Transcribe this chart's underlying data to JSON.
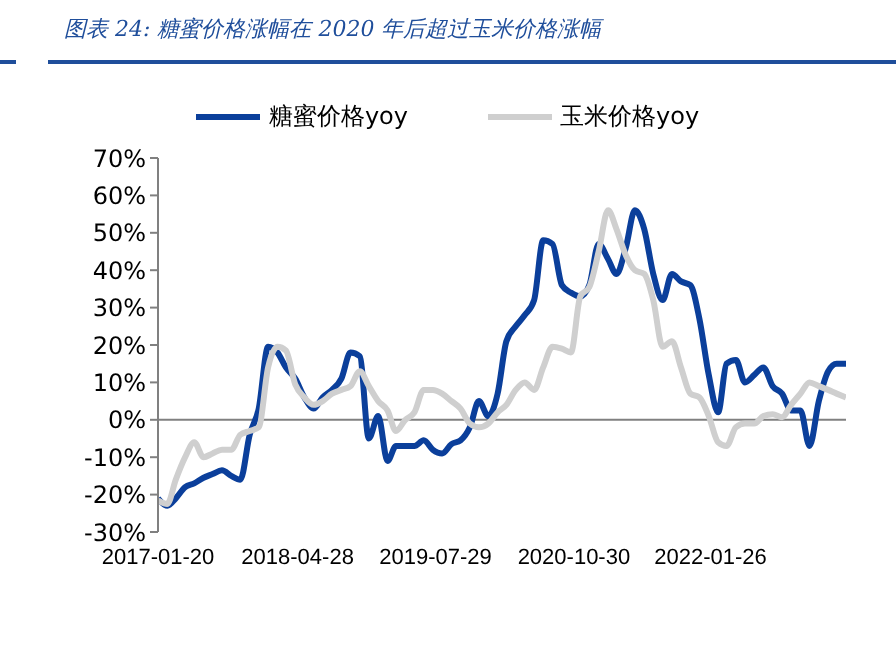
{
  "chart_data": {
    "type": "line",
    "title": "图表 24:  糖蜜价格涨幅在 2020 年后超过玉米价格涨幅",
    "x": [
      "2017-01-20",
      "2017-02-20",
      "2017-03-20",
      "2017-04-20",
      "2017-05-20",
      "2017-06-20",
      "2017-07-20",
      "2017-08-20",
      "2017-09-20",
      "2017-10-20",
      "2017-11-20",
      "2017-12-20",
      "2018-01-20",
      "2018-02-20",
      "2018-03-20",
      "2018-04-20",
      "2018-05-20",
      "2018-06-20",
      "2018-07-20",
      "2018-08-20",
      "2018-09-20",
      "2018-10-20",
      "2018-11-20",
      "2018-12-20",
      "2019-01-20",
      "2019-02-20",
      "2019-03-20",
      "2019-04-20",
      "2019-05-20",
      "2019-06-20",
      "2019-07-20",
      "2019-08-20",
      "2019-09-20",
      "2019-10-20",
      "2019-11-20",
      "2019-12-20",
      "2020-01-20",
      "2020-02-20",
      "2020-03-20",
      "2020-04-20",
      "2020-05-20",
      "2020-06-20",
      "2020-07-20",
      "2020-08-20",
      "2020-09-20",
      "2020-10-20",
      "2020-11-20",
      "2020-12-20",
      "2021-01-20",
      "2021-02-20",
      "2021-03-20",
      "2021-04-20",
      "2021-05-20",
      "2021-06-20",
      "2021-07-20",
      "2021-08-20",
      "2021-09-20",
      "2021-10-20",
      "2021-11-20",
      "2021-12-20",
      "2022-01-20",
      "2022-02-20",
      "2022-03-20",
      "2022-04-20",
      "2022-05-20",
      "2022-06-20",
      "2022-07-20",
      "2022-08-20",
      "2022-09-20",
      "2022-10-20",
      "2022-11-20",
      "2022-12-20",
      "2023-01-20",
      "2023-02-20",
      "2023-03-20",
      "2023-04-20"
    ],
    "series": [
      {
        "name": "糖蜜价格yoy",
        "color": "#0b3f9b",
        "values": [
          -21,
          -23,
          -21,
          -18,
          -17,
          -15.5,
          -14.5,
          -13.5,
          -15,
          -16,
          -4,
          3,
          19.5,
          18,
          14,
          11,
          6,
          3,
          6,
          8,
          11,
          18,
          17,
          -5,
          1,
          -11,
          -7,
          -7,
          -7,
          -5.5,
          -8,
          -9,
          -6.5,
          -5.5,
          -2,
          5,
          1,
          7,
          21,
          25,
          28,
          32,
          48,
          47,
          36,
          34,
          33,
          36,
          47,
          43,
          39,
          46,
          56,
          51,
          39,
          32,
          39,
          37,
          36,
          27,
          12,
          2,
          15,
          16,
          10,
          12,
          14,
          9,
          7,
          2.5,
          2.5,
          -7,
          5,
          13,
          15,
          15
        ]
      },
      {
        "name": "玉米价格yoy",
        "color": "#cfcfcf",
        "values": [
          -21.5,
          -22.5,
          -16,
          -10,
          -6,
          -10,
          -9,
          -8,
          -8,
          -4,
          -3,
          -2,
          14,
          19.5,
          18.5,
          9.5,
          6,
          4,
          5,
          7,
          8,
          9,
          13,
          9,
          5,
          2.5,
          -3,
          0,
          2,
          8,
          8,
          7,
          5,
          3,
          -1,
          -2,
          -1,
          2,
          4,
          8,
          10,
          8,
          14,
          19.5,
          19,
          18,
          33,
          35.5,
          45,
          56,
          51,
          44,
          40,
          39,
          32,
          19.5,
          21,
          14,
          7,
          6,
          1,
          -6,
          -7,
          -2,
          -1,
          -1,
          1,
          1.5,
          0.7,
          4,
          7,
          10,
          9,
          8,
          7,
          6
        ]
      }
    ],
    "xlim": [
      "2017-01-20",
      "2023-04-20"
    ],
    "xticks": [
      "2017-01-20",
      "2018-04-28",
      "2019-07-29",
      "2020-10-30",
      "2022-01-26"
    ],
    "ylim": [
      -30,
      70
    ],
    "yticks": [
      {
        "value": -30,
        "label": "-30%"
      },
      {
        "value": -20,
        "label": "-20%"
      },
      {
        "value": -10,
        "label": "-10%"
      },
      {
        "value": 0,
        "label": "0%"
      },
      {
        "value": 10,
        "label": "10%"
      },
      {
        "value": 20,
        "label": "20%"
      },
      {
        "value": 30,
        "label": "30%"
      },
      {
        "value": 40,
        "label": "40%"
      },
      {
        "value": 50,
        "label": "50%"
      },
      {
        "value": 60,
        "label": "60%"
      },
      {
        "value": 70,
        "label": "70%"
      }
    ],
    "ref_lines": [
      {
        "axis": "y",
        "value": 0,
        "color": "#808080"
      }
    ],
    "grid": false,
    "legend": "top",
    "marker": "none",
    "line_style": "solid"
  }
}
